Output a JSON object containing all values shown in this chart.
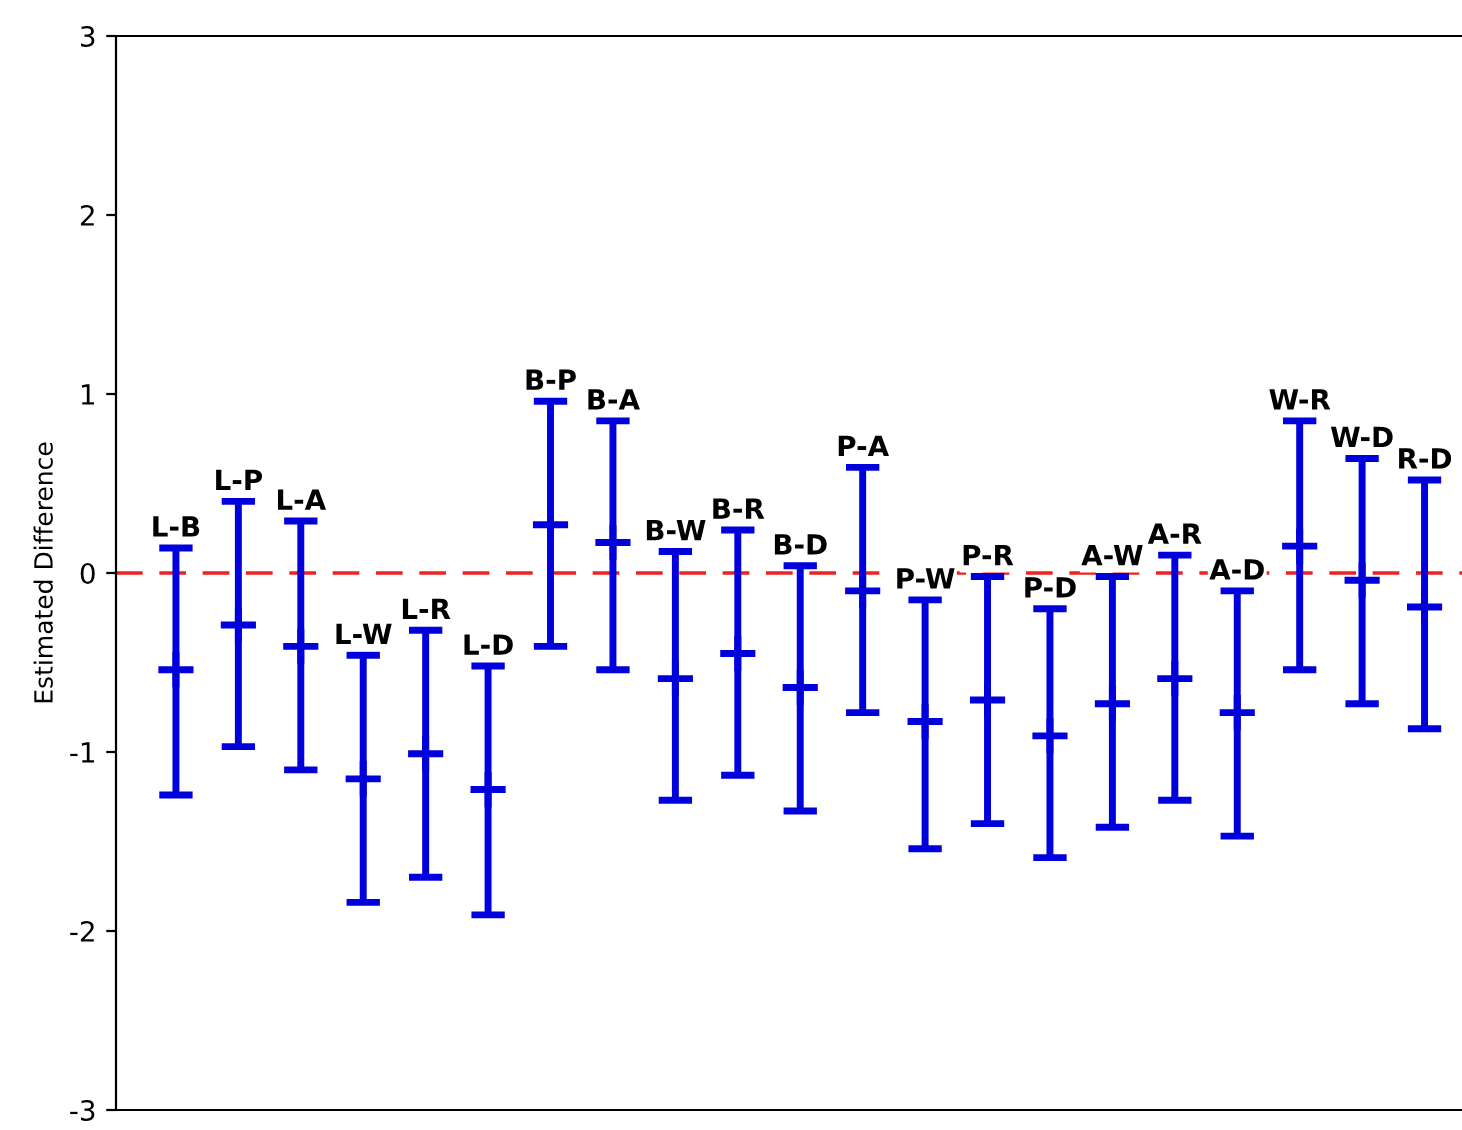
{
  "chart_data": {
    "type": "scatter",
    "ylabel": "Estimated Difference",
    "categories": [
      "L-B",
      "L-P",
      "L-A",
      "L-W",
      "L-R",
      "L-D",
      "B-P",
      "B-A",
      "B-W",
      "B-R",
      "B-D",
      "P-A",
      "P-W",
      "P-R",
      "P-D",
      "A-W",
      "A-R",
      "A-D",
      "W-R",
      "W-D",
      "R-D"
    ],
    "series": [
      {
        "color": "#0000dd",
        "values": [
          -0.54,
          -0.29,
          -0.41,
          -1.15,
          -1.01,
          -1.21,
          0.27,
          0.17,
          -0.59,
          -0.45,
          -0.64,
          -0.1,
          -0.83,
          -0.71,
          -0.91,
          -0.73,
          -0.59,
          -0.78,
          0.15,
          -0.04,
          -0.19
        ],
        "errors": [
          [
            -1.24,
            0.14
          ],
          [
            -0.97,
            0.4
          ],
          [
            -1.1,
            0.29
          ],
          [
            -1.84,
            -0.46
          ],
          [
            -1.7,
            -0.32
          ],
          [
            -1.91,
            -0.52
          ],
          [
            -0.41,
            0.96
          ],
          [
            -0.54,
            0.85
          ],
          [
            -1.27,
            0.12
          ],
          [
            -1.13,
            0.24
          ],
          [
            -1.33,
            0.04
          ],
          [
            -0.78,
            0.59
          ],
          [
            -1.54,
            -0.15
          ],
          [
            -1.4,
            -0.02
          ],
          [
            -1.59,
            -0.2
          ],
          [
            -1.42,
            -0.02
          ],
          [
            -1.27,
            0.1
          ],
          [
            -1.47,
            -0.1
          ],
          [
            -0.54,
            0.85
          ],
          [
            -0.73,
            0.64
          ],
          [
            -0.87,
            0.52
          ]
        ]
      }
    ],
    "ylim": [
      -3,
      3
    ],
    "yticks": [
      -3,
      -2,
      -1,
      0,
      1,
      2,
      3
    ],
    "ref_lines": [
      {
        "axis": "y",
        "value": 0,
        "color": "#ee2222",
        "line_style": "dashed"
      }
    ],
    "tick_labels": "y",
    "grid": false,
    "legend": false,
    "marker": "cross"
  }
}
